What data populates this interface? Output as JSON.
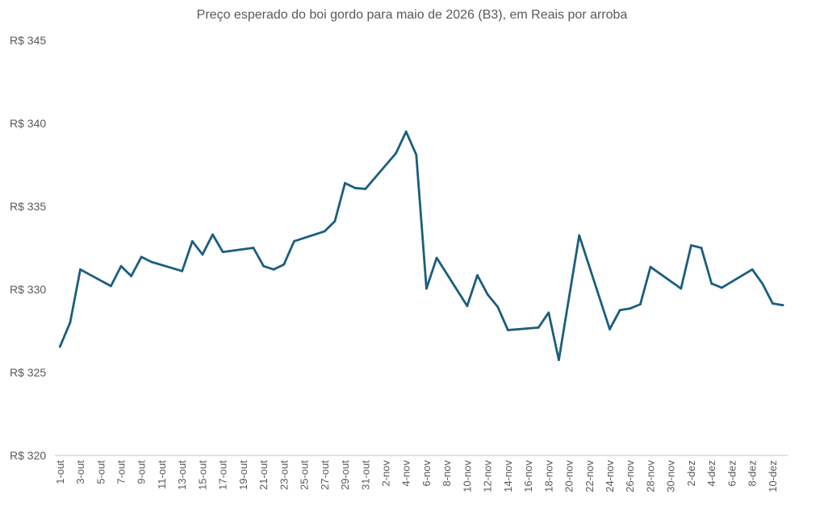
{
  "chart_data": {
    "type": "line",
    "title": "Preço esperado do boi gordo para maio de 2026 (B3), em Reais por arroba",
    "xlabel": "",
    "ylabel": "",
    "ylim": [
      320,
      345
    ],
    "y_ticks": [
      "R$ 320",
      "R$ 325",
      "R$ 330",
      "R$ 335",
      "R$ 340",
      "R$ 345"
    ],
    "y_tick_values": [
      320,
      325,
      330,
      335,
      340,
      345
    ],
    "x_ticks": [
      "1-out",
      "3-out",
      "5-out",
      "7-out",
      "9-out",
      "11-out",
      "13-out",
      "15-out",
      "17-out",
      "19-out",
      "21-out",
      "23-out",
      "25-out",
      "27-out",
      "29-out",
      "31-out",
      "2-nov",
      "4-nov",
      "6-nov",
      "8-nov",
      "10-nov",
      "12-nov",
      "14-nov",
      "16-nov",
      "18-nov",
      "20-nov",
      "22-nov",
      "24-nov",
      "26-nov",
      "28-nov",
      "30-nov",
      "2-dez",
      "4-dez",
      "6-dez",
      "8-dez",
      "10-dez"
    ],
    "grid": false,
    "legend": "none",
    "line_color": "#1b5e7e",
    "series": [
      {
        "x": [
          "1-out",
          "2-out",
          "3-out",
          "6-out",
          "7-out",
          "8-out",
          "9-out",
          "10-out",
          "13-out",
          "14-out",
          "15-out",
          "16-out",
          "17-out",
          "20-out",
          "21-out",
          "22-out",
          "23-out",
          "24-out",
          "27-out",
          "28-out",
          "29-out",
          "30-out",
          "31-out",
          "3-nov",
          "4-nov",
          "5-nov",
          "6-nov",
          "7-nov",
          "10-nov",
          "11-nov",
          "12-nov",
          "13-nov",
          "14-nov",
          "17-nov",
          "18-nov",
          "19-nov",
          "21-nov",
          "24-nov",
          "25-nov",
          "26-nov",
          "27-nov",
          "28-nov",
          "1-dez",
          "2-dez",
          "3-dez",
          "4-dez",
          "5-dez",
          "8-dez",
          "9-dez",
          "10-dez",
          "11-dez"
        ],
        "values": [
          326.55,
          328.0,
          331.2,
          330.2,
          331.4,
          330.8,
          331.95,
          331.65,
          331.1,
          332.9,
          332.1,
          333.3,
          332.25,
          332.5,
          331.4,
          331.2,
          331.5,
          332.9,
          333.5,
          334.1,
          336.4,
          336.1,
          336.05,
          338.2,
          339.5,
          338.1,
          330.05,
          331.9,
          329.0,
          330.85,
          329.7,
          328.95,
          327.55,
          327.7,
          328.6,
          325.75,
          333.25,
          327.6,
          328.75,
          328.85,
          329.1,
          331.35,
          330.05,
          332.65,
          332.5,
          330.35,
          330.1,
          331.2,
          330.35,
          329.15,
          329.05
        ]
      }
    ]
  }
}
